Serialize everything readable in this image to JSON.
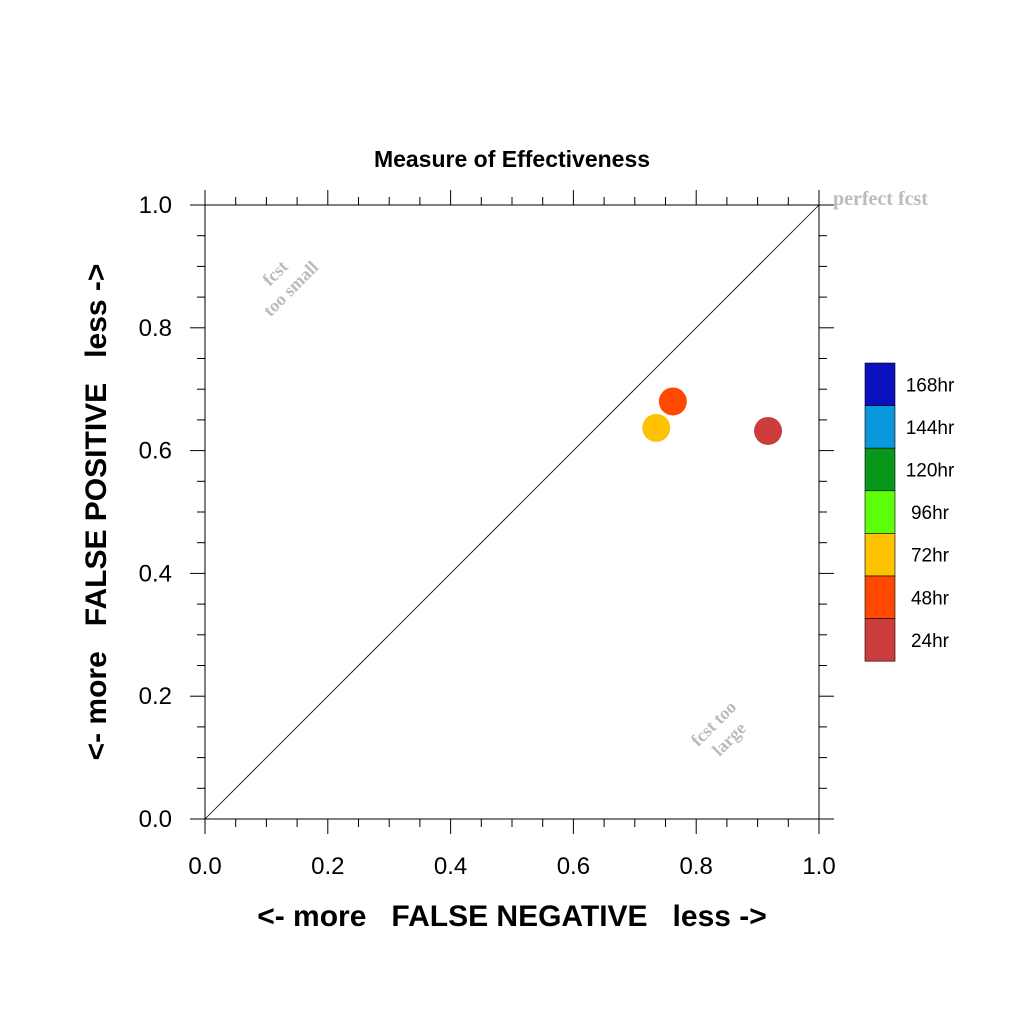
{
  "chart_data": {
    "type": "scatter",
    "title": "Measure of Effectiveness",
    "xlabel": "<- more   FALSE NEGATIVE   less ->",
    "ylabel": "<- more   FALSE POSITIVE   less ->",
    "xlim": [
      0.0,
      1.0
    ],
    "ylim": [
      0.0,
      1.0
    ],
    "x_ticks": [
      "0.0",
      "0.2",
      "0.4",
      "0.6",
      "0.8",
      "1.0"
    ],
    "y_ticks": [
      "0.0",
      "0.2",
      "0.4",
      "0.6",
      "0.8",
      "1.0"
    ],
    "grid": false,
    "reference_line": {
      "from": [
        0.0,
        0.0
      ],
      "to": [
        1.0,
        1.0
      ]
    },
    "annotations": {
      "perfect": "perfect fcst",
      "too_small_line1": "fcst",
      "too_small_line2": "too small",
      "too_large_line1": "fcst too",
      "too_large_line2": "large"
    },
    "annotation_color": "#bbbbbb",
    "legend": {
      "placement": "right",
      "entries": [
        {
          "label": "168hr",
          "color": "#0a0fbf"
        },
        {
          "label": "144hr",
          "color": "#0a97dc"
        },
        {
          "label": "120hr",
          "color": "#0a961a"
        },
        {
          "label": "96hr",
          "color": "#5dfe0a"
        },
        {
          "label": "72hr",
          "color": "#ffc200"
        },
        {
          "label": "48hr",
          "color": "#ff4800"
        },
        {
          "label": "24hr",
          "color": "#cd3c3c"
        }
      ]
    },
    "series": [
      {
        "name": "24hr",
        "color": "#cd3c3c",
        "x": 0.917,
        "y": 0.632
      },
      {
        "name": "48hr",
        "color": "#ff4800",
        "x": 0.762,
        "y": 0.68
      },
      {
        "name": "72hr",
        "color": "#ffc200",
        "x": 0.735,
        "y": 0.637
      }
    ]
  }
}
